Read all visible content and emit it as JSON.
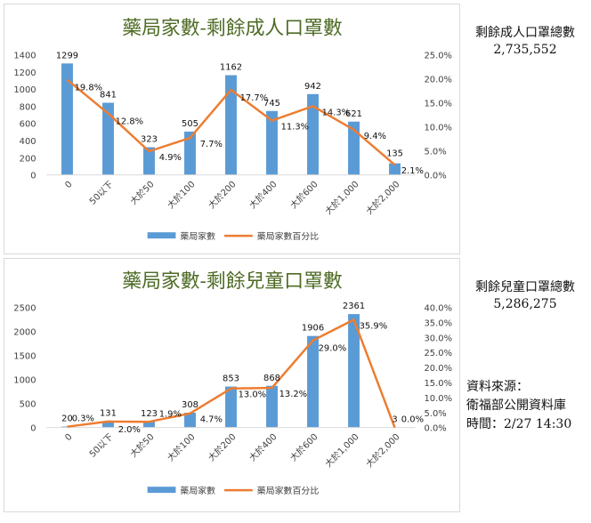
{
  "chart_data": [
    {
      "type": "bar",
      "title": "藥局家數-剩餘成人口罩數",
      "categories": [
        "0",
        "50以下",
        "大於50",
        "大於100",
        "大於200",
        "大於400",
        "大於600",
        "大於1,000",
        "大於2,000"
      ],
      "series": [
        {
          "name": "藥局家數",
          "type": "bar",
          "axis": "left",
          "values": [
            1299,
            841,
            323,
            505,
            1162,
            745,
            942,
            621,
            135
          ],
          "labels": [
            "1299",
            "841",
            "323",
            "505",
            "1162",
            "745",
            "942",
            "621",
            "135"
          ]
        },
        {
          "name": "藥局家數百分比",
          "type": "line",
          "axis": "right",
          "values": [
            19.8,
            12.8,
            4.9,
            7.7,
            17.7,
            11.3,
            14.3,
            9.4,
            2.1
          ],
          "labels": [
            "19.8%",
            "12.8%",
            "4.9%",
            "7.7%",
            "17.7%",
            "11.3%",
            "14.3%",
            "9.4%",
            "2.1%"
          ]
        }
      ],
      "y_left": {
        "min": 0,
        "max": 1400,
        "ticks": [
          "0",
          "200",
          "400",
          "600",
          "800",
          "1000",
          "1200",
          "1400"
        ]
      },
      "y_right": {
        "min": 0,
        "max": 25,
        "ticks": [
          "0.0%",
          "5.0%",
          "10.0%",
          "15.0%",
          "20.0%",
          "25.0%"
        ]
      },
      "grid": false,
      "legend": "bottom",
      "colors": {
        "bar": "#5b9bd5",
        "line": "#ed7d31",
        "title": "#4e6b25"
      }
    },
    {
      "type": "bar",
      "title": "藥局家數-剩餘兒童口罩數",
      "categories": [
        "0",
        "50以下",
        "大於50",
        "大於100",
        "大於200",
        "大於400",
        "大於600",
        "大於1,000",
        "大於2,000"
      ],
      "series": [
        {
          "name": "藥局家數",
          "type": "bar",
          "axis": "left",
          "values": [
            20,
            131,
            123,
            308,
            853,
            868,
            1906,
            2361,
            3
          ],
          "labels": [
            "20",
            "131",
            "123",
            "308",
            "853",
            "868",
            "1906",
            "2361",
            "3"
          ]
        },
        {
          "name": "藥局家數百分比",
          "type": "line",
          "axis": "right",
          "values": [
            0.3,
            2.0,
            1.9,
            4.7,
            13.0,
            13.2,
            29.0,
            35.9,
            0.0
          ],
          "labels": [
            "0.3%",
            "2.0%",
            "1.9%",
            "4.7%",
            "13.0%",
            "13.2%",
            "29.0%",
            "35.9%",
            "0.0%"
          ]
        }
      ],
      "y_left": {
        "min": 0,
        "max": 2500,
        "ticks": [
          "0",
          "500",
          "1000",
          "1500",
          "2000",
          "2500"
        ]
      },
      "y_right": {
        "min": 0,
        "max": 40,
        "ticks": [
          "0.0%",
          "5.0%",
          "10.0%",
          "15.0%",
          "20.0%",
          "25.0%",
          "30.0%",
          "35.0%",
          "40.0%"
        ]
      },
      "grid": false,
      "legend": "bottom",
      "colors": {
        "bar": "#5b9bd5",
        "line": "#ed7d31",
        "title": "#4e6b25"
      }
    }
  ],
  "totals": {
    "adult_label": "剩餘成人口罩總數",
    "adult_value": "2,735,552",
    "child_label": "剩餘兒童口罩總數",
    "child_value": "5,286,275"
  },
  "source": {
    "line1": "資料來源：",
    "line2": "衛福部公開資料庫",
    "line3": "時間：2/27 14:30"
  }
}
